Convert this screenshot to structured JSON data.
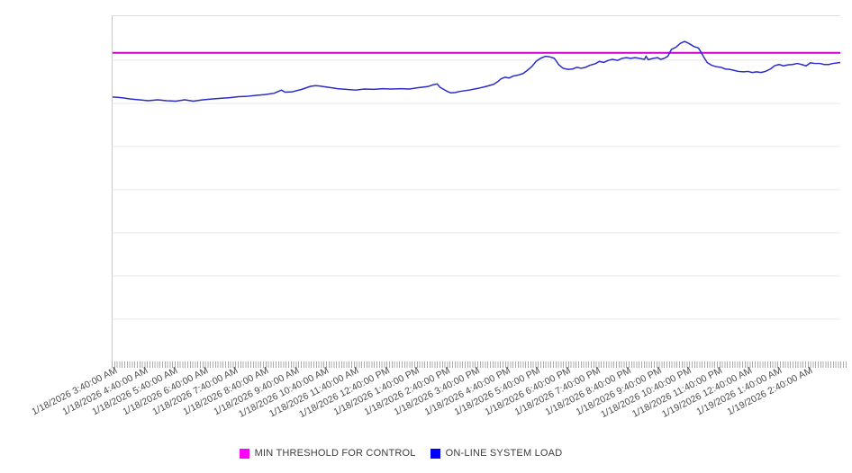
{
  "chart_data": {
    "type": "line",
    "title": "",
    "x": {
      "tick_labels": [
        "1/18/2026 3:40:00 AM",
        "1/18/2026 4:40:00 AM",
        "1/18/2026 5:40:00 AM",
        "1/18/2026 6:40:00 AM",
        "1/18/2026 7:40:00 AM",
        "1/18/2026 8:40:00 AM",
        "1/18/2026 9:40:00 AM",
        "1/18/2026 10:40:00 AM",
        "1/18/2026 11:40:00 AM",
        "1/18/2026 12:40:00 PM",
        "1/18/2026 1:40:00 PM",
        "1/18/2026 2:40:00 PM",
        "1/18/2026 3:40:00 PM",
        "1/18/2026 4:40:00 PM",
        "1/18/2026 5:40:00 PM",
        "1/18/2026 6:40:00 PM",
        "1/18/2026 7:40:00 PM",
        "1/18/2026 8:40:00 PM",
        "1/18/2026 9:40:00 PM",
        "1/18/2026 10:40:00 PM",
        "1/18/2026 11:40:00 PM",
        "1/19/2026 12:40:00 AM",
        "1/19/2026 1:40:00 AM",
        "1/19/2026 2:40:00 AM"
      ],
      "minor_ticks_per_major": 12,
      "major_tick_interval": "1 hour"
    },
    "y": {
      "tick_labels_visible": false,
      "unit": "percent of plot height (no axis labels shown)",
      "range_pct": [
        0,
        100
      ],
      "gridline_count": 7,
      "grid_on": true
    },
    "series": [
      {
        "name": "MIN THRESHOLD FOR CONTROL",
        "style": "horizontal-threshold",
        "color": "#CC00CC",
        "stroke_width": 2,
        "value_pct": 89.4
      },
      {
        "name": "ON-LINE SYSTEM LOAD",
        "style": "line",
        "color": "#2B2BC8",
        "stroke_width": 1.5,
        "points": [
          [
            0.0,
            76.6
          ],
          [
            0.012,
            76.4
          ],
          [
            0.025,
            76.0
          ],
          [
            0.037,
            75.8
          ],
          [
            0.049,
            75.5
          ],
          [
            0.062,
            75.8
          ],
          [
            0.074,
            75.5
          ],
          [
            0.087,
            75.4
          ],
          [
            0.099,
            75.8
          ],
          [
            0.111,
            75.4
          ],
          [
            0.124,
            75.8
          ],
          [
            0.136,
            76.0
          ],
          [
            0.148,
            76.2
          ],
          [
            0.161,
            76.4
          ],
          [
            0.173,
            76.7
          ],
          [
            0.185,
            76.8
          ],
          [
            0.198,
            77.1
          ],
          [
            0.21,
            77.3
          ],
          [
            0.222,
            77.7
          ],
          [
            0.232,
            78.6
          ],
          [
            0.237,
            78.0
          ],
          [
            0.247,
            78.1
          ],
          [
            0.26,
            78.8
          ],
          [
            0.272,
            79.7
          ],
          [
            0.279,
            79.9
          ],
          [
            0.284,
            79.8
          ],
          [
            0.297,
            79.4
          ],
          [
            0.309,
            79.0
          ],
          [
            0.321,
            78.8
          ],
          [
            0.334,
            78.6
          ],
          [
            0.346,
            78.9
          ],
          [
            0.359,
            78.8
          ],
          [
            0.371,
            79.0
          ],
          [
            0.383,
            78.9
          ],
          [
            0.396,
            79.0
          ],
          [
            0.408,
            78.9
          ],
          [
            0.42,
            79.3
          ],
          [
            0.433,
            79.6
          ],
          [
            0.44,
            80.1
          ],
          [
            0.446,
            80.4
          ],
          [
            0.45,
            79.4
          ],
          [
            0.455,
            78.8
          ],
          [
            0.46,
            78.2
          ],
          [
            0.465,
            77.8
          ],
          [
            0.471,
            77.9
          ],
          [
            0.477,
            78.2
          ],
          [
            0.49,
            78.6
          ],
          [
            0.502,
            79.1
          ],
          [
            0.514,
            79.7
          ],
          [
            0.524,
            80.3
          ],
          [
            0.529,
            81.0
          ],
          [
            0.534,
            81.9
          ],
          [
            0.539,
            82.3
          ],
          [
            0.545,
            82.1
          ],
          [
            0.551,
            82.7
          ],
          [
            0.558,
            83.0
          ],
          [
            0.564,
            83.4
          ],
          [
            0.57,
            84.3
          ],
          [
            0.576,
            85.4
          ],
          [
            0.582,
            86.9
          ],
          [
            0.588,
            87.8
          ],
          [
            0.595,
            88.4
          ],
          [
            0.601,
            88.2
          ],
          [
            0.607,
            87.8
          ],
          [
            0.613,
            86.0
          ],
          [
            0.619,
            84.9
          ],
          [
            0.626,
            84.6
          ],
          [
            0.632,
            84.7
          ],
          [
            0.638,
            85.2
          ],
          [
            0.644,
            84.9
          ],
          [
            0.65,
            85.2
          ],
          [
            0.656,
            85.8
          ],
          [
            0.663,
            86.2
          ],
          [
            0.669,
            86.9
          ],
          [
            0.675,
            86.6
          ],
          [
            0.681,
            87.2
          ],
          [
            0.687,
            87.5
          ],
          [
            0.694,
            87.2
          ],
          [
            0.7,
            87.8
          ],
          [
            0.706,
            88.0
          ],
          [
            0.712,
            87.8
          ],
          [
            0.718,
            88.0
          ],
          [
            0.724,
            87.8
          ],
          [
            0.731,
            87.5
          ],
          [
            0.733,
            88.4
          ],
          [
            0.736,
            87.4
          ],
          [
            0.743,
            87.8
          ],
          [
            0.749,
            88.0
          ],
          [
            0.753,
            87.5
          ],
          [
            0.758,
            87.8
          ],
          [
            0.763,
            88.4
          ],
          [
            0.768,
            90.4
          ],
          [
            0.774,
            91.0
          ],
          [
            0.78,
            92.1
          ],
          [
            0.786,
            92.7
          ],
          [
            0.792,
            92.1
          ],
          [
            0.799,
            91.2
          ],
          [
            0.805,
            90.8
          ],
          [
            0.808,
            89.8
          ],
          [
            0.812,
            88.3
          ],
          [
            0.817,
            86.6
          ],
          [
            0.823,
            85.8
          ],
          [
            0.829,
            85.4
          ],
          [
            0.836,
            85.2
          ],
          [
            0.842,
            84.7
          ],
          [
            0.848,
            84.6
          ],
          [
            0.854,
            84.3
          ],
          [
            0.86,
            84.0
          ],
          [
            0.867,
            83.9
          ],
          [
            0.873,
            84.0
          ],
          [
            0.879,
            83.7
          ],
          [
            0.885,
            83.9
          ],
          [
            0.891,
            83.7
          ],
          [
            0.897,
            84.0
          ],
          [
            0.904,
            84.7
          ],
          [
            0.91,
            85.7
          ],
          [
            0.916,
            86.0
          ],
          [
            0.922,
            85.6
          ],
          [
            0.928,
            85.9
          ],
          [
            0.934,
            86.0
          ],
          [
            0.941,
            86.3
          ],
          [
            0.947,
            86.0
          ],
          [
            0.953,
            85.6
          ],
          [
            0.959,
            86.5
          ],
          [
            0.965,
            86.3
          ],
          [
            0.972,
            86.3
          ],
          [
            0.978,
            86.0
          ],
          [
            0.984,
            86.0
          ],
          [
            0.99,
            86.3
          ],
          [
            1.0,
            86.6
          ]
        ]
      }
    ],
    "legend": {
      "position": "bottom-center",
      "items": [
        {
          "label": "MIN THRESHOLD FOR CONTROL",
          "color": "#FF00FF"
        },
        {
          "label": "ON-LINE SYSTEM LOAD",
          "color": "#0000FF"
        }
      ]
    },
    "colors": {
      "background": "#FFFFFF",
      "gridline": "#E7E7E7",
      "axis_line": "#C9C9C9",
      "minor_tick": "#ABABAB",
      "tick_label_text": "#4A4A4A",
      "legend_text": "#3C3C3C"
    }
  }
}
